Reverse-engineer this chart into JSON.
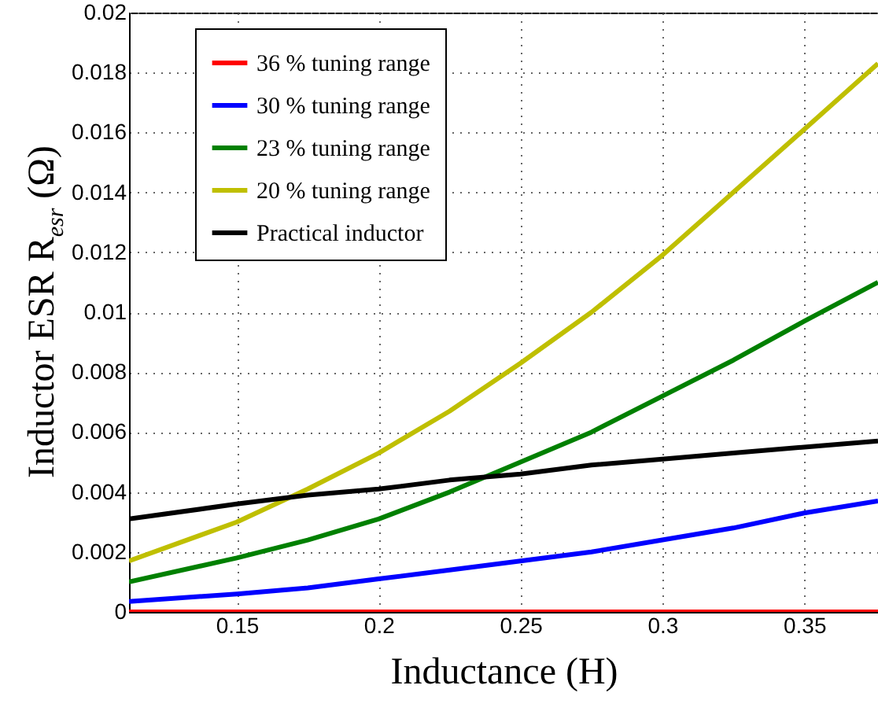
{
  "chart_data": {
    "type": "line",
    "xlabel": "Inductance (H)",
    "ylabel": "Inductor ESR R$_{esr}$ (Ω)",
    "x": [
      0.112,
      0.15,
      0.175,
      0.2,
      0.225,
      0.25,
      0.275,
      0.3,
      0.325,
      0.35,
      0.376
    ],
    "series": [
      {
        "name": "36 % tuning range",
        "color": "#ff0000",
        "values": [
          0,
          0,
          0,
          0,
          0,
          0,
          0,
          0,
          0,
          0,
          0
        ]
      },
      {
        "name": "30 % tuning range",
        "color": "#0000ff",
        "values": [
          0.00035,
          0.0006,
          0.0008,
          0.0011,
          0.0014,
          0.0017,
          0.002,
          0.0024,
          0.0028,
          0.0033,
          0.0037
        ]
      },
      {
        "name": "23 % tuning range",
        "color": "#008000",
        "values": [
          0.001,
          0.0018,
          0.0024,
          0.0031,
          0.004,
          0.005,
          0.006,
          0.0072,
          0.0084,
          0.0097,
          0.011
        ]
      },
      {
        "name": "20 % tuning range",
        "color": "#bfbf00",
        "values": [
          0.0017,
          0.003,
          0.0041,
          0.0053,
          0.0067,
          0.0083,
          0.01,
          0.0119,
          0.014,
          0.0161,
          0.0183
        ]
      },
      {
        "name": "Practical inductor",
        "color": "#000000",
        "values": [
          0.0031,
          0.0036,
          0.0039,
          0.0041,
          0.0044,
          0.0046,
          0.0049,
          0.0051,
          0.0053,
          0.0055,
          0.0057
        ]
      }
    ],
    "xlim": [
      0.112,
      0.376
    ],
    "xticks": [
      0.15,
      0.2,
      0.25,
      0.3,
      0.35
    ],
    "ylim": [
      0,
      0.02
    ],
    "yticks": [
      0,
      0.002,
      0.004,
      0.006,
      0.008,
      0.01,
      0.012,
      0.014,
      0.016,
      0.018,
      0.02
    ],
    "grid": true,
    "legend": "top left"
  }
}
